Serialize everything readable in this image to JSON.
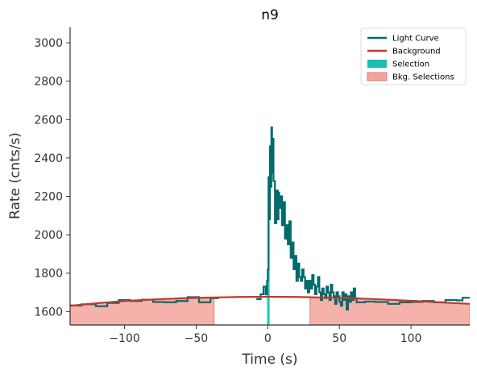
{
  "chart_data": {
    "type": "line",
    "title": "n9",
    "xlabel": "Time (s)",
    "ylabel": "Rate (cnts/s)",
    "xlim": [
      -138,
      141
    ],
    "ylim": [
      1530,
      3080
    ],
    "xticks": [
      -100,
      -50,
      0,
      50,
      100
    ],
    "xtick_labels": [
      "−100",
      "−50",
      "0",
      "50",
      "100"
    ],
    "yticks": [
      1600,
      1800,
      2000,
      2200,
      2400,
      2600,
      2800,
      3000
    ],
    "ytick_labels": [
      "1600",
      "1800",
      "2000",
      "2200",
      "2400",
      "2600",
      "2800",
      "3000"
    ],
    "grid": false,
    "legend_position": "top-right",
    "colors": {
      "light_curve": "#006b6b",
      "background": "#c0392b",
      "selection": "#1abfb3",
      "bkg_selection_fill": "#f2a59c",
      "bkg_selection_edge": "#e07a6e"
    },
    "legend": [
      {
        "label": "Light Curve",
        "kind": "line",
        "color": "#006b6b"
      },
      {
        "label": "Background",
        "kind": "line",
        "color": "#c0392b"
      },
      {
        "label": "Selection",
        "kind": "patch",
        "color": "#1abfb3"
      },
      {
        "label": "Bkg. Selections",
        "kind": "patch",
        "color": "#f2a59c"
      }
    ],
    "background_model": {
      "name": "Background",
      "x": [
        -138,
        -120,
        -100,
        -80,
        -60,
        -40,
        -20,
        0,
        20,
        40,
        60,
        80,
        100,
        120,
        141
      ],
      "y": [
        1630,
        1643,
        1655,
        1663,
        1669,
        1673,
        1676,
        1677,
        1676,
        1673,
        1669,
        1663,
        1656,
        1648,
        1640
      ]
    },
    "bkg_selections": [
      {
        "x_start": -138,
        "x_end": -37.5
      },
      {
        "x_start": 29.5,
        "x_end": 141
      }
    ],
    "selection": {
      "x_start": -0.5,
      "x_end": 1.3
    },
    "light_curve": {
      "name": "Light Curve",
      "steps": [
        [
          -138,
          1632
        ],
        [
          -130,
          1638
        ],
        [
          -120,
          1628
        ],
        [
          -112,
          1645
        ],
        [
          -104,
          1660
        ],
        [
          -96,
          1655
        ],
        [
          -88,
          1662
        ],
        [
          -80,
          1650
        ],
        [
          -72,
          1648
        ],
        [
          -64,
          1655
        ],
        [
          -56,
          1675
        ],
        [
          -48,
          1648
        ],
        [
          -40,
          1670
        ],
        [
          -8,
          1665
        ],
        [
          -5,
          1690
        ],
        [
          -3,
          1730
        ],
        [
          -1.5,
          1690
        ],
        [
          -0.5,
          1760
        ],
        [
          0,
          1820
        ],
        [
          0.5,
          2300
        ],
        [
          1,
          2080
        ],
        [
          1.5,
          2460
        ],
        [
          2,
          2250
        ],
        [
          2.5,
          2560
        ],
        [
          3,
          2320
        ],
        [
          3.5,
          2500
        ],
        [
          4,
          2280
        ],
        [
          5,
          2060
        ],
        [
          6,
          2230
        ],
        [
          7,
          2080
        ],
        [
          7.5,
          2220
        ],
        [
          8,
          2140
        ],
        [
          9,
          2200
        ],
        [
          10,
          2050
        ],
        [
          11,
          2170
        ],
        [
          12,
          1980
        ],
        [
          13,
          2050
        ],
        [
          14,
          1950
        ],
        [
          15,
          2070
        ],
        [
          16,
          1880
        ],
        [
          17,
          1960
        ],
        [
          18,
          1820
        ],
        [
          19,
          1890
        ],
        [
          20,
          1760
        ],
        [
          21,
          1850
        ],
        [
          22,
          1780
        ],
        [
          23,
          1760
        ],
        [
          24,
          1820
        ],
        [
          25,
          1780
        ],
        [
          26,
          1720
        ],
        [
          27,
          1760
        ],
        [
          28,
          1700
        ],
        [
          29,
          1760
        ],
        [
          30,
          1720
        ],
        [
          31,
          1790
        ],
        [
          32,
          1740
        ],
        [
          33,
          1690
        ],
        [
          34,
          1730
        ],
        [
          35,
          1780
        ],
        [
          36,
          1700
        ],
        [
          37,
          1660
        ],
        [
          38,
          1720
        ],
        [
          39,
          1690
        ],
        [
          40,
          1670
        ],
        [
          41,
          1730
        ],
        [
          42,
          1700
        ],
        [
          43,
          1660
        ],
        [
          44,
          1740
        ],
        [
          45,
          1700
        ],
        [
          46,
          1680
        ],
        [
          47,
          1640
        ],
        [
          48,
          1700
        ],
        [
          49,
          1680
        ],
        [
          50,
          1650
        ],
        [
          51,
          1630
        ],
        [
          52,
          1700
        ],
        [
          53,
          1660
        ],
        [
          54,
          1690
        ],
        [
          55,
          1610
        ],
        [
          56,
          1680
        ],
        [
          57,
          1650
        ],
        [
          58,
          1700
        ],
        [
          59,
          1660
        ],
        [
          60,
          1720
        ],
        [
          61,
          1670
        ],
        [
          62,
          1648
        ],
        [
          68,
          1652
        ],
        [
          75,
          1650
        ],
        [
          84,
          1640
        ],
        [
          92,
          1648
        ],
        [
          100,
          1650
        ],
        [
          108,
          1655
        ],
        [
          116,
          1648
        ],
        [
          124,
          1660
        ],
        [
          132,
          1658
        ],
        [
          136,
          1672
        ],
        [
          141,
          1672
        ]
      ]
    }
  }
}
